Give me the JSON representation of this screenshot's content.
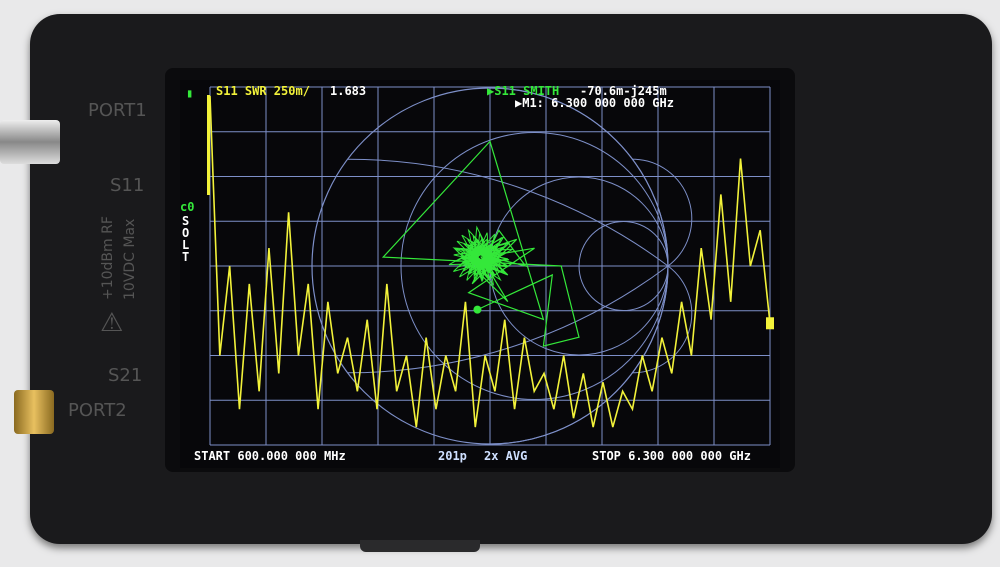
{
  "device": {
    "port1": "PORT1",
    "s11": "S11",
    "power_warning": "+10dBm RF",
    "dc_warning": "10VDC Max",
    "s21": "S21",
    "port2": "PORT2"
  },
  "screen": {
    "trace1_label": "S11 SWR 250m/",
    "trace1_value": "1.683",
    "trace2_label": "▶S11 SMITH",
    "trace2_value": "-70.6m-j245m",
    "marker": "▶M1: 6.300 000 000 GHz",
    "cal_slot": "c0",
    "cal_mode": [
      "S",
      "O",
      "L",
      "T"
    ],
    "start": "START  600.000 000 MHz",
    "points": "201p",
    "avg": "2x AVG",
    "stop": "STOP 6.300 000 000 GHz",
    "battery_icon": "battery-icon"
  },
  "colors": {
    "trace1": "#f2f23a",
    "trace2": "#34e83a",
    "grid": "#7d8fc8"
  },
  "chart_data": [
    {
      "type": "line",
      "title": "S11 SWR",
      "y_scale_per_div": 0.25,
      "ylim": [
        1.0,
        3.0
      ],
      "xlim_ghz": [
        0.6,
        6.3
      ],
      "grid": true,
      "x_ghz": [
        0.6,
        0.7,
        0.8,
        0.9,
        1.0,
        1.1,
        1.2,
        1.3,
        1.4,
        1.5,
        1.6,
        1.7,
        1.8,
        1.9,
        2.0,
        2.1,
        2.2,
        2.3,
        2.4,
        2.5,
        2.6,
        2.7,
        2.8,
        2.9,
        3.0,
        3.1,
        3.2,
        3.3,
        3.4,
        3.5,
        3.6,
        3.7,
        3.8,
        3.9,
        4.0,
        4.1,
        4.2,
        4.3,
        4.4,
        4.5,
        4.6,
        4.7,
        4.8,
        4.9,
        5.0,
        5.1,
        5.2,
        5.3,
        5.4,
        5.5,
        5.6,
        5.7,
        5.8,
        5.9,
        6.0,
        6.1,
        6.2,
        6.3
      ],
      "values": [
        2.95,
        1.5,
        2.0,
        1.2,
        1.9,
        1.3,
        2.1,
        1.4,
        2.3,
        1.5,
        1.9,
        1.2,
        1.8,
        1.4,
        1.6,
        1.3,
        1.7,
        1.2,
        1.9,
        1.3,
        1.5,
        1.1,
        1.6,
        1.2,
        1.5,
        1.3,
        1.8,
        1.1,
        1.5,
        1.3,
        1.7,
        1.2,
        1.6,
        1.3,
        1.4,
        1.2,
        1.5,
        1.15,
        1.4,
        1.1,
        1.35,
        1.1,
        1.3,
        1.2,
        1.5,
        1.3,
        1.6,
        1.4,
        1.8,
        1.5,
        2.1,
        1.7,
        2.4,
        1.8,
        2.6,
        2.0,
        2.2,
        1.68
      ]
    },
    {
      "type": "line",
      "title": "S11 SMITH",
      "marker_gamma": [
        -0.0706,
        -0.245
      ],
      "gamma_re": [
        -0.05,
        0.1,
        -0.15,
        0.15,
        -0.1,
        0.05,
        0.2,
        -0.2,
        0.1,
        -0.05,
        0.25,
        -0.12,
        0.3,
        0.0,
        -0.6,
        0.4,
        0.5,
        0.3,
        0.35,
        -0.0706
      ],
      "gamma_im": [
        0.1,
        -0.05,
        0.05,
        0.15,
        -0.1,
        0.2,
        0.0,
        0.1,
        -0.2,
        0.05,
        0.1,
        -0.15,
        -0.3,
        0.7,
        0.05,
        0.0,
        -0.4,
        -0.45,
        -0.05,
        -0.245
      ]
    }
  ]
}
